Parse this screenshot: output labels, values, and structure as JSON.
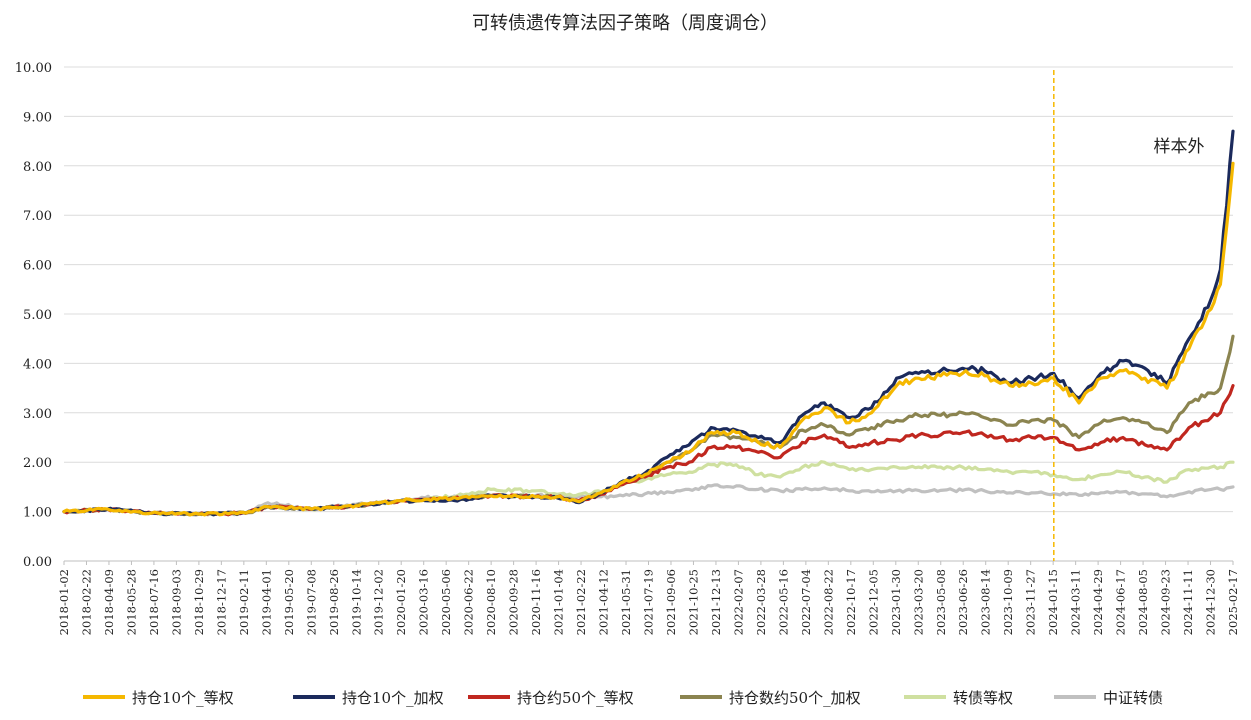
{
  "chart_data": {
    "type": "line",
    "title": "可转债遗传算法因子策略（周度调仓）",
    "ylim": [
      0,
      10
    ],
    "yticks": [
      "0.00",
      "1.00",
      "2.00",
      "3.00",
      "4.00",
      "5.00",
      "6.00",
      "7.00",
      "8.00",
      "9.00",
      "10.00"
    ],
    "grid": true,
    "legend_position": "bottom",
    "x_start": "2018-01-02",
    "x_end": "2025-02-17",
    "x_tick_labels": [
      "2018-01-02",
      "2018-02-22",
      "2018-04-09",
      "2018-05-28",
      "2018-07-16",
      "2018-09-03",
      "2018-10-29",
      "2018-12-17",
      "2019-02-11",
      "2019-04-01",
      "2019-05-20",
      "2019-07-08",
      "2019-08-26",
      "2019-10-14",
      "2019-12-02",
      "2020-01-20",
      "2020-03-16",
      "2020-05-06",
      "2020-06-22",
      "2020-08-10",
      "2020-09-28",
      "2020-11-16",
      "2021-01-04",
      "2021-02-22",
      "2021-04-12",
      "2021-05-31",
      "2021-07-19",
      "2021-09-06",
      "2021-10-25",
      "2021-12-13",
      "2022-02-07",
      "2022-03-28",
      "2022-05-16",
      "2022-07-04",
      "2022-08-22",
      "2022-10-17",
      "2022-12-05",
      "2023-01-30",
      "2023-03-20",
      "2023-05-08",
      "2023-06-26",
      "2023-08-14",
      "2023-10-09",
      "2023-11-27",
      "2024-01-15",
      "2024-03-11",
      "2024-04-29",
      "2024-06-17",
      "2024-08-05",
      "2024-09-23",
      "2024-11-11",
      "2024-12-30",
      "2025-02-17"
    ],
    "dates": [
      "2018-01-02",
      "2018-04-09",
      "2018-07-16",
      "2018-10-29",
      "2019-02-11",
      "2019-04-01",
      "2019-07-08",
      "2019-10-14",
      "2020-01-20",
      "2020-03-16",
      "2020-06-22",
      "2020-08-10",
      "2020-11-16",
      "2021-01-04",
      "2021-02-22",
      "2021-04-12",
      "2021-05-31",
      "2021-07-19",
      "2021-09-06",
      "2021-10-25",
      "2021-12-13",
      "2022-02-07",
      "2022-03-28",
      "2022-05-16",
      "2022-07-04",
      "2022-08-22",
      "2022-10-17",
      "2022-12-05",
      "2023-01-30",
      "2023-03-20",
      "2023-05-08",
      "2023-06-26",
      "2023-08-14",
      "2023-10-09",
      "2023-11-27",
      "2024-01-15",
      "2024-03-11",
      "2024-04-29",
      "2024-06-17",
      "2024-08-05",
      "2024-09-23",
      "2024-11-11",
      "2024-12-30",
      "2025-01-20",
      "2025-02-17"
    ],
    "series": [
      {
        "name": "持仓10个_等权",
        "color": "#F5B800",
        "width": 3.2,
        "values": [
          1.0,
          1.05,
          0.97,
          0.95,
          0.97,
          1.1,
          1.05,
          1.12,
          1.22,
          1.25,
          1.28,
          1.32,
          1.3,
          1.3,
          1.2,
          1.38,
          1.6,
          1.75,
          2.0,
          2.2,
          2.6,
          2.6,
          2.4,
          2.3,
          2.85,
          3.1,
          2.8,
          3.0,
          3.55,
          3.7,
          3.75,
          3.8,
          3.75,
          3.55,
          3.6,
          3.7,
          3.2,
          3.7,
          3.85,
          3.7,
          3.5,
          4.3,
          5.1,
          5.6,
          8.05
        ]
      },
      {
        "name": "持仓10个_加权",
        "color": "#1B2A5C",
        "width": 3.2,
        "values": [
          1.0,
          1.05,
          0.97,
          0.95,
          0.97,
          1.1,
          1.05,
          1.12,
          1.22,
          1.22,
          1.25,
          1.32,
          1.3,
          1.28,
          1.18,
          1.38,
          1.62,
          1.78,
          2.1,
          2.35,
          2.7,
          2.65,
          2.5,
          2.4,
          2.95,
          3.2,
          2.9,
          3.1,
          3.7,
          3.8,
          3.85,
          3.9,
          3.85,
          3.6,
          3.7,
          3.8,
          3.3,
          3.8,
          4.05,
          3.9,
          3.6,
          4.5,
          5.3,
          5.9,
          8.7
        ]
      },
      {
        "name": "持仓约50个_等权",
        "color": "#C0271F",
        "width": 3.2,
        "values": [
          1.0,
          1.05,
          0.97,
          0.95,
          0.97,
          1.1,
          1.05,
          1.12,
          1.22,
          1.25,
          1.28,
          1.32,
          1.3,
          1.3,
          1.22,
          1.35,
          1.55,
          1.7,
          1.9,
          2.0,
          2.3,
          2.3,
          2.2,
          2.1,
          2.4,
          2.55,
          2.3,
          2.4,
          2.45,
          2.55,
          2.55,
          2.6,
          2.55,
          2.45,
          2.5,
          2.5,
          2.25,
          2.4,
          2.5,
          2.35,
          2.25,
          2.7,
          2.9,
          3.0,
          3.55
        ]
      },
      {
        "name": "持仓数约50个_加权",
        "color": "#8B8450",
        "width": 3.2,
        "values": [
          1.0,
          1.05,
          0.97,
          0.95,
          0.97,
          1.1,
          1.05,
          1.12,
          1.22,
          1.25,
          1.28,
          1.32,
          1.3,
          1.3,
          1.22,
          1.38,
          1.58,
          1.75,
          2.0,
          2.2,
          2.55,
          2.5,
          2.4,
          2.3,
          2.65,
          2.75,
          2.55,
          2.7,
          2.85,
          2.95,
          2.95,
          3.0,
          2.9,
          2.75,
          2.85,
          2.85,
          2.5,
          2.8,
          2.9,
          2.8,
          2.6,
          3.2,
          3.4,
          3.5,
          4.55
        ]
      },
      {
        "name": "转债等权",
        "color": "#CFE0A0",
        "width": 3.2,
        "values": [
          1.0,
          1.05,
          0.97,
          0.95,
          0.97,
          1.1,
          1.05,
          1.12,
          1.22,
          1.25,
          1.35,
          1.45,
          1.42,
          1.35,
          1.35,
          1.4,
          1.55,
          1.65,
          1.75,
          1.8,
          1.95,
          1.95,
          1.75,
          1.7,
          1.9,
          2.0,
          1.85,
          1.85,
          1.9,
          1.9,
          1.9,
          1.9,
          1.85,
          1.8,
          1.8,
          1.75,
          1.65,
          1.75,
          1.8,
          1.7,
          1.6,
          1.85,
          1.9,
          1.9,
          2.0
        ]
      },
      {
        "name": "中证转债",
        "color": "#C0C0C0",
        "width": 3.2,
        "values": [
          1.0,
          1.05,
          0.97,
          0.95,
          0.97,
          1.18,
          1.05,
          1.15,
          1.22,
          1.28,
          1.3,
          1.33,
          1.32,
          1.32,
          1.3,
          1.3,
          1.32,
          1.36,
          1.4,
          1.45,
          1.52,
          1.52,
          1.45,
          1.42,
          1.45,
          1.48,
          1.42,
          1.4,
          1.42,
          1.43,
          1.43,
          1.43,
          1.42,
          1.38,
          1.38,
          1.36,
          1.33,
          1.38,
          1.4,
          1.36,
          1.3,
          1.4,
          1.45,
          1.45,
          1.5
        ]
      }
    ],
    "annotations": [
      {
        "type": "vertical_line",
        "x": "2024-01-15",
        "color": "#F5B800",
        "style": "dashed"
      },
      {
        "type": "text",
        "text": "样本外",
        "x": "2024-08-05",
        "y": 8.4
      }
    ]
  }
}
